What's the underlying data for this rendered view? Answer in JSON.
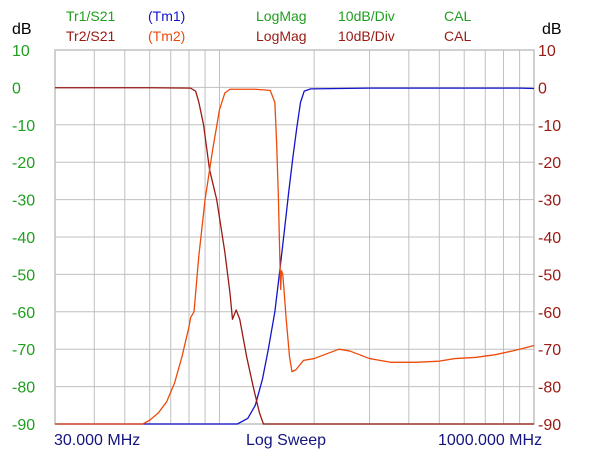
{
  "header": {
    "row1": {
      "trace": "Tr1/S21",
      "memory": "(Tm1)",
      "format": "LogMag",
      "scale": "10dB/Div",
      "cal": "CAL"
    },
    "row2": {
      "trace": "Tr2/S21",
      "memory": "(Tm2)",
      "format": "LogMag",
      "scale": "10dB/Div",
      "cal": "CAL"
    }
  },
  "footer": {
    "start": "30.000 MHz",
    "sweep": "Log Sweep",
    "stop": "1000.000 MHz"
  },
  "colors": {
    "green": "#1f9f1f",
    "darkred": "#991a14",
    "blue": "#1414cc",
    "orange": "#ee4a0a",
    "navy": "#141480",
    "grid": "#c0c0c0"
  },
  "chart_data": {
    "type": "line",
    "x_scale": "log",
    "xlim": [
      30,
      1000
    ],
    "x_unit": "MHz",
    "ylim": [
      -90,
      10
    ],
    "yticks": [
      10,
      0,
      -10,
      -20,
      -30,
      -40,
      -50,
      -60,
      -70,
      -80,
      -90
    ],
    "ytick_labels": [
      "10",
      "0",
      "-10",
      "-20",
      "-30",
      "-40",
      "-50",
      "-60",
      "-70",
      "-80",
      "-90"
    ],
    "left_axis_title": "dB",
    "right_axis_title": "dB",
    "grid": true,
    "series": [
      {
        "name": "Tr1/S21",
        "color": "#1414cc",
        "points": [
          [
            30,
            -90
          ],
          [
            114,
            -90
          ],
          [
            123,
            -88.5
          ],
          [
            130,
            -85
          ],
          [
            137,
            -78
          ],
          [
            143,
            -70
          ],
          [
            150,
            -60
          ],
          [
            156,
            -48
          ],
          [
            161,
            -38
          ],
          [
            166,
            -28
          ],
          [
            171,
            -19
          ],
          [
            176,
            -11
          ],
          [
            181,
            -4
          ],
          [
            186,
            -1
          ],
          [
            195,
            -0.4
          ],
          [
            300,
            -0.2
          ],
          [
            600,
            -0.2
          ],
          [
            900,
            -0.2
          ],
          [
            1000,
            -0.3
          ]
        ]
      },
      {
        "name": "Tr2/S21",
        "color": "#991a14",
        "points": [
          [
            30,
            -0.1
          ],
          [
            60,
            -0.1
          ],
          [
            81,
            -0.2
          ],
          [
            84,
            -1
          ],
          [
            86,
            -4
          ],
          [
            89,
            -10
          ],
          [
            93,
            -22
          ],
          [
            98,
            -30
          ],
          [
            104,
            -44
          ],
          [
            108,
            -55
          ],
          [
            110,
            -62
          ],
          [
            113,
            -59.5
          ],
          [
            116,
            -62
          ],
          [
            122,
            -72
          ],
          [
            128,
            -80
          ],
          [
            134,
            -87
          ],
          [
            138,
            -90
          ],
          [
            1000,
            -90
          ]
        ]
      },
      {
        "name": "(Tm2)",
        "color": "#ee4a0a",
        "points": [
          [
            30,
            -90
          ],
          [
            57,
            -90
          ],
          [
            60,
            -89
          ],
          [
            64,
            -87
          ],
          [
            68,
            -84
          ],
          [
            72,
            -79
          ],
          [
            76,
            -72
          ],
          [
            80,
            -64
          ],
          [
            81,
            -61.5
          ],
          [
            83,
            -60
          ],
          [
            86,
            -45
          ],
          [
            90,
            -30
          ],
          [
            95,
            -17
          ],
          [
            100,
            -6
          ],
          [
            104,
            -1.5
          ],
          [
            108,
            -0.5
          ],
          [
            130,
            -0.5
          ],
          [
            145,
            -0.8
          ],
          [
            150,
            -4
          ],
          [
            152,
            -15
          ],
          [
            154,
            -30
          ],
          [
            155.5,
            -45
          ],
          [
            156.5,
            -54
          ],
          [
            157.5,
            -49
          ],
          [
            159,
            -50
          ],
          [
            161,
            -56
          ],
          [
            163,
            -62
          ],
          [
            167,
            -72
          ],
          [
            170,
            -76
          ],
          [
            175,
            -75.5
          ],
          [
            185,
            -73
          ],
          [
            200,
            -72.5
          ],
          [
            215,
            -71.5
          ],
          [
            240,
            -70
          ],
          [
            260,
            -70.5
          ],
          [
            300,
            -72.5
          ],
          [
            350,
            -73.5
          ],
          [
            420,
            -73.5
          ],
          [
            500,
            -73.2
          ],
          [
            560,
            -72.5
          ],
          [
            650,
            -72.2
          ],
          [
            750,
            -71.5
          ],
          [
            850,
            -70.5
          ],
          [
            950,
            -69.5
          ],
          [
            1000,
            -69
          ]
        ]
      }
    ]
  }
}
